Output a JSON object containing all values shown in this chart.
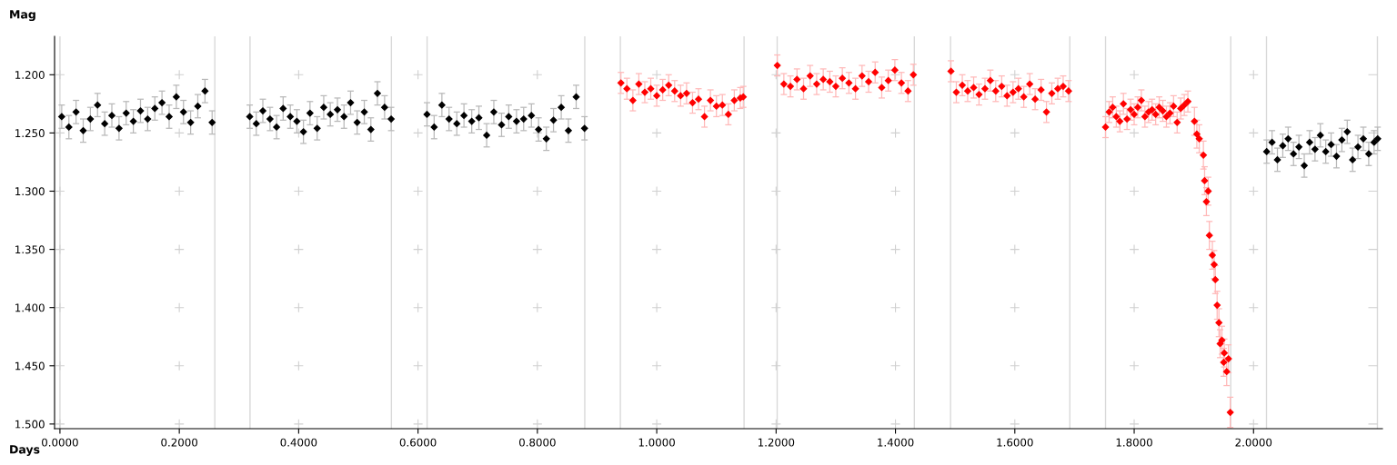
{
  "chart_data": {
    "type": "scatter",
    "xlabel": "Days",
    "ylabel": "Mag",
    "xlim": [
      -0.009,
      2.216
    ],
    "ylim": [
      1.504,
      1.167
    ],
    "xticks": [
      {
        "value": 0,
        "label": "0.0000"
      },
      {
        "value": 0.2,
        "label": "0.2000"
      },
      {
        "value": 0.4,
        "label": "0.4000"
      },
      {
        "value": 0.6,
        "label": "0.6000"
      },
      {
        "value": 0.8,
        "label": "0.8000"
      },
      {
        "value": 1.0,
        "label": "1.0000"
      },
      {
        "value": 1.2,
        "label": "1.2000"
      },
      {
        "value": 1.4,
        "label": "1.4000"
      },
      {
        "value": 1.6,
        "label": "1.6000"
      },
      {
        "value": 1.8,
        "label": "1.8000"
      },
      {
        "value": 2.0,
        "label": "2.0000"
      }
    ],
    "yticks": [
      {
        "value": 1.2,
        "label": "1.200"
      },
      {
        "value": 1.25,
        "label": "1.250"
      },
      {
        "value": 1.3,
        "label": "1.300"
      },
      {
        "value": 1.35,
        "label": "1.350"
      },
      {
        "value": 1.4,
        "label": "1.400"
      },
      {
        "value": 1.45,
        "label": "1.450"
      },
      {
        "value": 1.5,
        "label": "1.500"
      }
    ],
    "grid": true,
    "marker": "diamond",
    "ref_lines": [
      {
        "axis": "x",
        "value": 0.0,
        "color": "#d9d9d9"
      },
      {
        "axis": "x",
        "value": 0.2595,
        "color": "#d9d9d9"
      },
      {
        "axis": "x",
        "value": 0.3185,
        "color": "#d9d9d9"
      },
      {
        "axis": "x",
        "value": 0.5554,
        "color": "#d9d9d9"
      },
      {
        "axis": "x",
        "value": 0.6152,
        "color": "#d9d9d9"
      },
      {
        "axis": "x",
        "value": 0.8794,
        "color": "#d9d9d9"
      },
      {
        "axis": "x",
        "value": 0.939,
        "color": "#d9d9d9"
      },
      {
        "axis": "x",
        "value": 1.1463,
        "color": "#d9d9d9"
      },
      {
        "axis": "x",
        "value": 1.2018,
        "color": "#d9d9d9"
      },
      {
        "axis": "x",
        "value": 1.4316,
        "color": "#d9d9d9"
      },
      {
        "axis": "x",
        "value": 1.4923,
        "color": "#d9d9d9"
      },
      {
        "axis": "x",
        "value": 1.6922,
        "color": "#d9d9d9"
      },
      {
        "axis": "x",
        "value": 1.752,
        "color": "#d9d9d9"
      },
      {
        "axis": "x",
        "value": 1.9618,
        "color": "#d9d9d9"
      },
      {
        "axis": "x",
        "value": 2.0217,
        "color": "#d9d9d9"
      },
      {
        "axis": "x",
        "value": 2.2076,
        "color": "#d9d9d9"
      }
    ],
    "series": [
      {
        "color": "#000000",
        "x": [
          0.003,
          0.015,
          0.027,
          0.039,
          0.051,
          0.063,
          0.075,
          0.087,
          0.099,
          0.111,
          0.123,
          0.135,
          0.147,
          0.159,
          0.171,
          0.183,
          0.195,
          0.207,
          0.219,
          0.231,
          0.243,
          0.255,
          0.318,
          0.329,
          0.34,
          0.352,
          0.363,
          0.374,
          0.386,
          0.397,
          0.408,
          0.419,
          0.431,
          0.442,
          0.453,
          0.465,
          0.476,
          0.487,
          0.498,
          0.51,
          0.521,
          0.532,
          0.544,
          0.555,
          0.615,
          0.627,
          0.64,
          0.652,
          0.665,
          0.677,
          0.69,
          0.702,
          0.715,
          0.727,
          0.74,
          0.752,
          0.765,
          0.777,
          0.79,
          0.802,
          0.815,
          0.827,
          0.84,
          0.852,
          0.865,
          0.879,
          2.022,
          2.031,
          2.04,
          2.049,
          2.058,
          2.067,
          2.076,
          2.085,
          2.094,
          2.103,
          2.112,
          2.121,
          2.13,
          2.139,
          2.148,
          2.157,
          2.166,
          2.175,
          2.184,
          2.193,
          2.202,
          2.208
        ],
        "values": [
          1.236,
          1.245,
          1.232,
          1.248,
          1.238,
          1.226,
          1.242,
          1.235,
          1.246,
          1.233,
          1.24,
          1.231,
          1.238,
          1.229,
          1.224,
          1.236,
          1.219,
          1.232,
          1.241,
          1.227,
          1.214,
          1.241,
          1.236,
          1.242,
          1.231,
          1.238,
          1.245,
          1.229,
          1.236,
          1.24,
          1.249,
          1.233,
          1.246,
          1.228,
          1.234,
          1.23,
          1.236,
          1.224,
          1.241,
          1.232,
          1.247,
          1.216,
          1.228,
          1.238,
          1.234,
          1.245,
          1.226,
          1.238,
          1.242,
          1.235,
          1.24,
          1.237,
          1.252,
          1.232,
          1.243,
          1.236,
          1.24,
          1.238,
          1.235,
          1.247,
          1.255,
          1.239,
          1.228,
          1.248,
          1.219,
          1.246,
          1.266,
          1.258,
          1.273,
          1.261,
          1.255,
          1.268,
          1.262,
          1.278,
          1.258,
          1.264,
          1.252,
          1.266,
          1.26,
          1.27,
          1.256,
          1.249,
          1.273,
          1.262,
          1.255,
          1.268,
          1.258,
          1.255
        ],
        "errors": [
          0.01,
          0.01,
          0.01,
          0.01,
          0.01,
          0.01,
          0.01,
          0.01,
          0.01,
          0.01,
          0.01,
          0.01,
          0.01,
          0.01,
          0.01,
          0.01,
          0.01,
          0.01,
          0.01,
          0.01,
          0.01,
          0.01,
          0.01,
          0.01,
          0.01,
          0.01,
          0.01,
          0.01,
          0.01,
          0.01,
          0.01,
          0.01,
          0.01,
          0.01,
          0.01,
          0.01,
          0.01,
          0.01,
          0.01,
          0.01,
          0.01,
          0.01,
          0.01,
          0.01,
          0.01,
          0.01,
          0.01,
          0.01,
          0.01,
          0.01,
          0.01,
          0.01,
          0.01,
          0.01,
          0.01,
          0.01,
          0.01,
          0.01,
          0.01,
          0.01,
          0.01,
          0.01,
          0.01,
          0.01,
          0.01,
          0.01,
          0.01,
          0.01,
          0.01,
          0.01,
          0.01,
          0.01,
          0.01,
          0.01,
          0.01,
          0.01,
          0.01,
          0.01,
          0.01,
          0.01,
          0.01,
          0.01,
          0.01,
          0.01,
          0.01,
          0.01,
          0.01,
          0.01
        ]
      },
      {
        "color": "#ff0000",
        "x": [
          0.94,
          0.95,
          0.96,
          0.97,
          0.98,
          0.99,
          1.0,
          1.01,
          1.02,
          1.03,
          1.04,
          1.05,
          1.06,
          1.07,
          1.08,
          1.09,
          1.1,
          1.11,
          1.12,
          1.13,
          1.14,
          1.145,
          1.202,
          1.213,
          1.224,
          1.235,
          1.246,
          1.257,
          1.268,
          1.279,
          1.29,
          1.3,
          1.311,
          1.322,
          1.333,
          1.344,
          1.355,
          1.366,
          1.377,
          1.388,
          1.399,
          1.41,
          1.421,
          1.43,
          1.493,
          1.502,
          1.512,
          1.521,
          1.531,
          1.54,
          1.55,
          1.559,
          1.568,
          1.578,
          1.587,
          1.597,
          1.606,
          1.615,
          1.625,
          1.634,
          1.644,
          1.653,
          1.662,
          1.672,
          1.681,
          1.69,
          1.752,
          1.758,
          1.764,
          1.77,
          1.776,
          1.782,
          1.788,
          1.794,
          1.8,
          1.806,
          1.812,
          1.818,
          1.824,
          1.83,
          1.836,
          1.842,
          1.848,
          1.854,
          1.86,
          1.866,
          1.872,
          1.878,
          1.884,
          1.89,
          1.901,
          1.905,
          1.909,
          1.916,
          1.918,
          1.921,
          1.924,
          1.926,
          1.931,
          1.934,
          1.936,
          1.939,
          1.942,
          1.944,
          1.947,
          1.95,
          1.951,
          1.955,
          1.958,
          1.961
        ],
        "values": [
          1.207,
          1.212,
          1.222,
          1.208,
          1.215,
          1.212,
          1.218,
          1.213,
          1.209,
          1.214,
          1.218,
          1.216,
          1.224,
          1.221,
          1.236,
          1.222,
          1.227,
          1.226,
          1.234,
          1.222,
          1.22,
          1.219,
          1.192,
          1.208,
          1.21,
          1.204,
          1.212,
          1.201,
          1.208,
          1.204,
          1.206,
          1.21,
          1.203,
          1.207,
          1.212,
          1.201,
          1.206,
          1.198,
          1.211,
          1.205,
          1.196,
          1.207,
          1.214,
          1.2,
          1.197,
          1.215,
          1.209,
          1.214,
          1.211,
          1.217,
          1.212,
          1.205,
          1.214,
          1.21,
          1.218,
          1.215,
          1.212,
          1.219,
          1.208,
          1.221,
          1.213,
          1.232,
          1.216,
          1.212,
          1.21,
          1.214,
          1.245,
          1.232,
          1.228,
          1.236,
          1.24,
          1.225,
          1.238,
          1.23,
          1.234,
          1.228,
          1.222,
          1.236,
          1.232,
          1.23,
          1.234,
          1.228,
          1.231,
          1.236,
          1.233,
          1.227,
          1.241,
          1.229,
          1.226,
          1.223,
          1.24,
          1.251,
          1.255,
          1.269,
          1.291,
          1.309,
          1.3,
          1.338,
          1.355,
          1.363,
          1.376,
          1.398,
          1.413,
          1.431,
          1.428,
          1.447,
          1.439,
          1.455,
          1.444,
          1.49
        ],
        "errors": [
          0.009,
          0.009,
          0.009,
          0.009,
          0.009,
          0.009,
          0.009,
          0.009,
          0.009,
          0.009,
          0.009,
          0.009,
          0.009,
          0.009,
          0.009,
          0.009,
          0.009,
          0.009,
          0.009,
          0.009,
          0.009,
          0.009,
          0.009,
          0.009,
          0.009,
          0.009,
          0.009,
          0.009,
          0.009,
          0.009,
          0.009,
          0.009,
          0.009,
          0.009,
          0.009,
          0.009,
          0.009,
          0.009,
          0.009,
          0.009,
          0.009,
          0.009,
          0.009,
          0.009,
          0.009,
          0.009,
          0.009,
          0.009,
          0.009,
          0.009,
          0.009,
          0.009,
          0.009,
          0.009,
          0.009,
          0.009,
          0.009,
          0.009,
          0.009,
          0.009,
          0.009,
          0.009,
          0.009,
          0.009,
          0.009,
          0.009,
          0.009,
          0.009,
          0.009,
          0.009,
          0.009,
          0.009,
          0.009,
          0.009,
          0.009,
          0.009,
          0.009,
          0.009,
          0.009,
          0.009,
          0.009,
          0.009,
          0.009,
          0.009,
          0.009,
          0.009,
          0.009,
          0.009,
          0.009,
          0.009,
          0.012,
          0.012,
          0.012,
          0.012,
          0.012,
          0.012,
          0.012,
          0.012,
          0.012,
          0.012,
          0.012,
          0.012,
          0.012,
          0.012,
          0.012,
          0.012,
          0.012,
          0.012,
          0.012,
          0.013
        ]
      }
    ]
  }
}
